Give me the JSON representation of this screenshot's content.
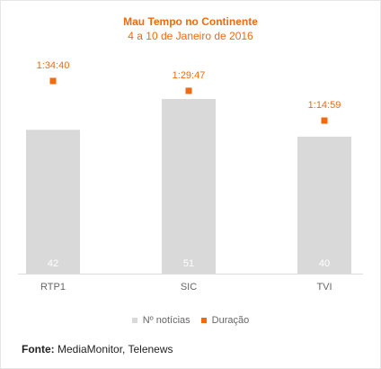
{
  "chart_data": {
    "type": "bar",
    "title": "Mau Tempo no Continente",
    "subtitle": "4 a 10 de Janeiro de 2016",
    "categories": [
      "RTP1",
      "SIC",
      "TVI"
    ],
    "series": [
      {
        "name": "Nº notícias",
        "type": "bar",
        "color": "#d9d9d9",
        "values": [
          42,
          51,
          40
        ]
      },
      {
        "name": "Duração",
        "type": "scatter",
        "color": "#f06a0f",
        "values": [
          "1:34:40",
          "1:29:47",
          "1:14:59"
        ]
      }
    ],
    "legend_position": "bottom",
    "grid": false
  },
  "source": {
    "label": "Fonte:",
    "text": "MediaMonitor, Telenews"
  }
}
